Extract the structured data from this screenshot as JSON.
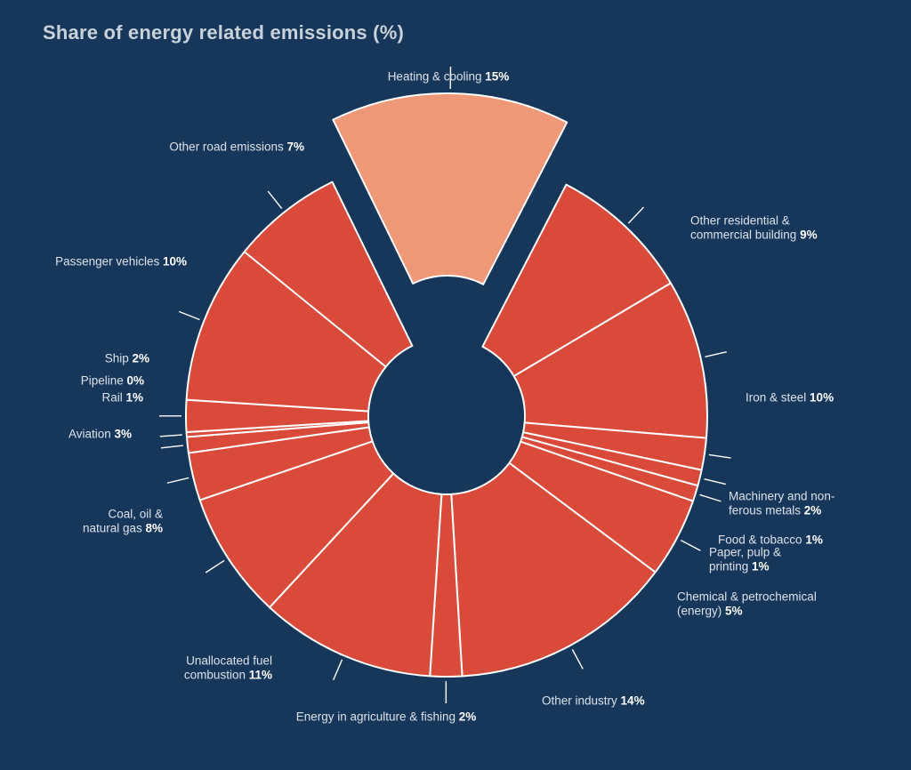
{
  "chart_data": {
    "type": "pie",
    "title": "Share of energy related emissions (%)",
    "colors": {
      "background": "#17375a",
      "slice": "#d94a3a",
      "highlight": "#ee9878",
      "slice_border": "#ffffff",
      "label_text": "#dbe2ea",
      "value_text": "#ffffff",
      "leader_line": "#ffffff",
      "title_text": "#c9d1da"
    },
    "highlighted": "Heating & cooling",
    "slices": [
      {
        "label": "Heating & cooling",
        "value_text": "15%",
        "value": 15
      },
      {
        "label": "Other residential & commercial building",
        "value_text": "9%",
        "value": 9
      },
      {
        "label": "Iron & steel",
        "value_text": "10%",
        "value": 10
      },
      {
        "label": "Machinery and non-ferous metals",
        "value_text": "2%",
        "value": 2
      },
      {
        "label": "Food & tobacco",
        "value_text": "1%",
        "value": 1
      },
      {
        "label": "Paper, pulp & printing",
        "value_text": "1%",
        "value": 1
      },
      {
        "label": "Chemical & petrochemical (energy)",
        "value_text": "5%",
        "value": 5
      },
      {
        "label": "Other industry",
        "value_text": "14%",
        "value": 14
      },
      {
        "label": "Energy in agriculture & fishing",
        "value_text": "2%",
        "value": 2
      },
      {
        "label": "Unallocated fuel combustion",
        "value_text": "11%",
        "value": 11
      },
      {
        "label": "Coal, oil & natural gas",
        "value_text": "8%",
        "value": 8
      },
      {
        "label": "Aviation",
        "value_text": "3%",
        "value": 3
      },
      {
        "label": "Rail",
        "value_text": "1%",
        "value": 1
      },
      {
        "label": "Pipeline",
        "value_text": "0%",
        "value": 0.3
      },
      {
        "label": "Ship",
        "value_text": "2%",
        "value": 2
      },
      {
        "label": "Passenger vehicles",
        "value_text": "10%",
        "value": 10
      },
      {
        "label": "Other road emissions",
        "value_text": "7%",
        "value": 7
      }
    ],
    "label_lines": [
      [
        "Heating & cooling"
      ],
      [
        "Other residential &",
        "commercial building"
      ],
      [
        "Iron & steel"
      ],
      [
        "Machinery and non-",
        "ferous metals"
      ],
      [
        "Food & tobacco"
      ],
      [
        "Paper, pulp &",
        "printing"
      ],
      [
        "Chemical & petrochemical",
        "(energy)"
      ],
      [
        "Other industry"
      ],
      [
        "Energy in agriculture & fishing"
      ],
      [
        "Unallocated fuel",
        "combustion"
      ],
      [
        "Coal, oil &",
        "natural gas"
      ],
      [
        "Aviation"
      ],
      [
        "Rail"
      ],
      [
        "Pipeline"
      ],
      [
        "Ship"
      ],
      [
        "Passenger vehicles"
      ],
      [
        "Other road emissions"
      ]
    ]
  }
}
